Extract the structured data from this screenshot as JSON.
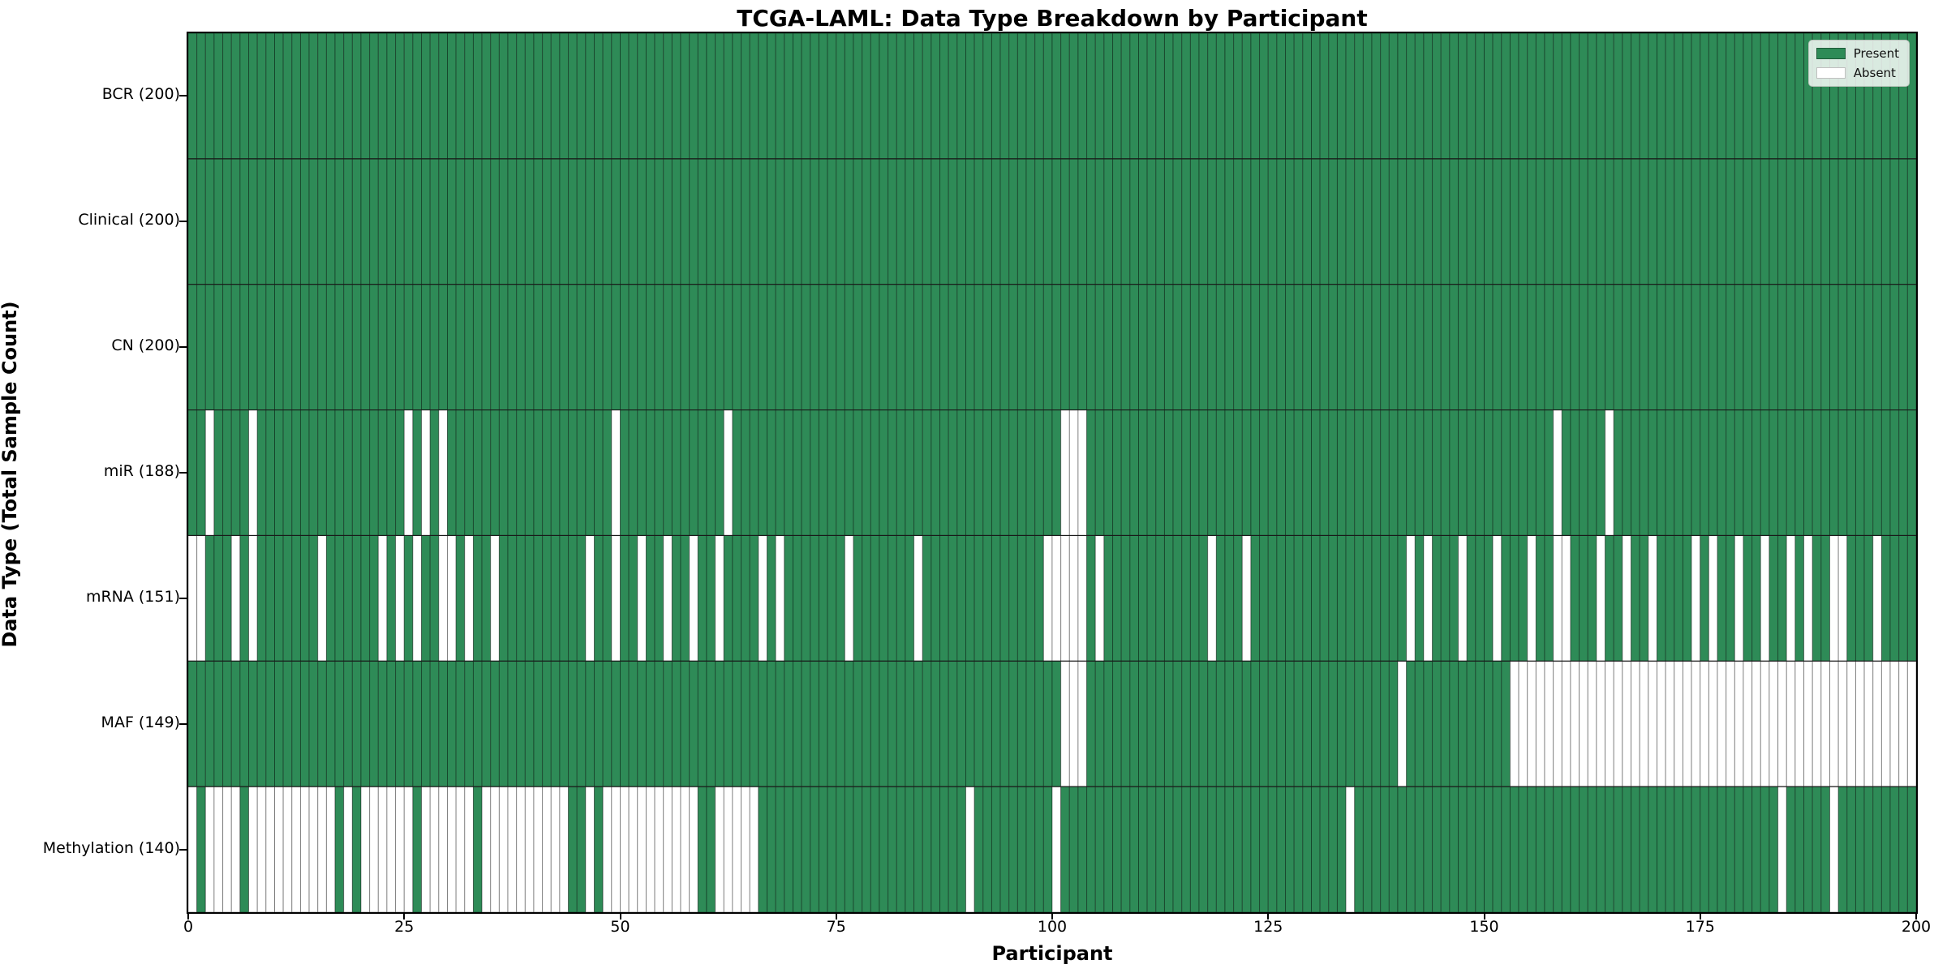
{
  "title": "TCGA-LAML: Data Type Breakdown by Participant",
  "x_axis": {
    "label": "Participant",
    "min": 0,
    "max": 200,
    "ticks": [
      0,
      25,
      50,
      75,
      100,
      125,
      150,
      175,
      200
    ]
  },
  "y_axis": {
    "label": "Data Type (Total Sample Count)"
  },
  "legend": {
    "present_label": "Present",
    "absent_label": "Absent",
    "position": "upper right"
  },
  "colors": {
    "present": "#2e8b57",
    "absent": "#ffffff",
    "cell_edge": "rgba(0,0,0,0.38)",
    "row_separator": "#1a1a1a",
    "plot_border": "#000000"
  },
  "chart_data": {
    "type": "heatmap",
    "subtype": "presence-absence-grid",
    "n_participants": 200,
    "grid": true,
    "legend_position": "upper right",
    "rows": [
      {
        "label": "BCR (200)",
        "name": "BCR",
        "present_count": 200,
        "absent_participants": []
      },
      {
        "label": "Clinical (200)",
        "name": "Clinical",
        "present_count": 200,
        "absent_participants": []
      },
      {
        "label": "CN (200)",
        "name": "CN",
        "present_count": 200,
        "absent_participants": []
      },
      {
        "label": "miR (188)",
        "name": "miR",
        "present_count": 188,
        "absent_participants": [
          2,
          7,
          25,
          27,
          29,
          49,
          62,
          101,
          102,
          103,
          158,
          164
        ]
      },
      {
        "label": "mRNA (151)",
        "name": "mRNA",
        "present_count": 151,
        "absent_participants": [
          0,
          1,
          5,
          7,
          15,
          22,
          24,
          26,
          29,
          30,
          32,
          35,
          46,
          49,
          52,
          55,
          58,
          61,
          66,
          68,
          76,
          84,
          99,
          100,
          101,
          102,
          103,
          105,
          118,
          122,
          141,
          143,
          147,
          151,
          155,
          158,
          159,
          163,
          166,
          169,
          174,
          176,
          179,
          182,
          185,
          187,
          190,
          191,
          195
        ]
      },
      {
        "label": "MAF (149)",
        "name": "MAF",
        "present_count": 149,
        "absent_participants": [
          101,
          102,
          103,
          140,
          153,
          154,
          155,
          156,
          157,
          158,
          159,
          160,
          161,
          162,
          163,
          164,
          165,
          166,
          167,
          168,
          169,
          170,
          171,
          172,
          173,
          174,
          175,
          176,
          177,
          178,
          179,
          180,
          181,
          182,
          183,
          184,
          185,
          186,
          187,
          188,
          189,
          190,
          191,
          192,
          193,
          194,
          195,
          196,
          197,
          198,
          199
        ]
      },
      {
        "label": "Methylation (140)",
        "name": "Methylation",
        "present_count": 140,
        "absent_participants": [
          0,
          2,
          3,
          4,
          5,
          7,
          8,
          9,
          10,
          11,
          12,
          13,
          14,
          15,
          16,
          18,
          20,
          21,
          22,
          23,
          24,
          25,
          27,
          28,
          29,
          30,
          31,
          32,
          34,
          35,
          36,
          37,
          38,
          39,
          40,
          41,
          42,
          43,
          46,
          48,
          49,
          50,
          51,
          52,
          53,
          54,
          55,
          56,
          57,
          58,
          61,
          62,
          63,
          64,
          65,
          90,
          100,
          134,
          184,
          190
        ]
      }
    ]
  }
}
